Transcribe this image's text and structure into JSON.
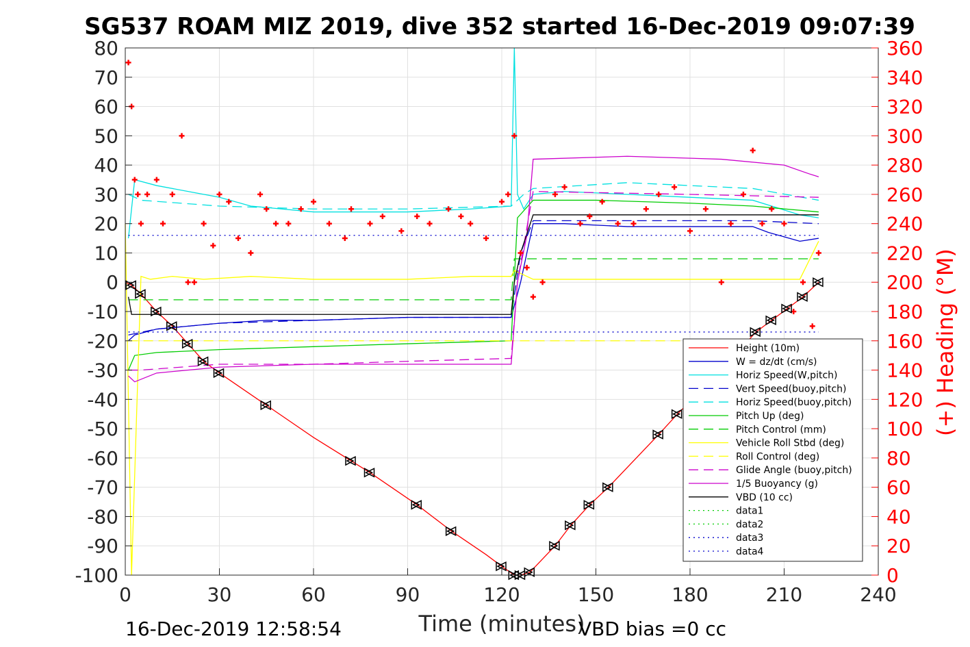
{
  "chart_data": {
    "type": "line",
    "title": "SG537 ROAM MIZ 2019, dive 352 started 16-Dec-2019 09:07:39",
    "xlabel": "Time (minutes)",
    "ylabel": "",
    "y2label": "(+) Heading (°M)",
    "xlim": [
      0,
      240
    ],
    "ylim": [
      -100,
      80
    ],
    "y2lim": [
      0,
      360
    ],
    "x_ticks": [
      "0",
      "30",
      "60",
      "90",
      "120",
      "150",
      "180",
      "210",
      "240"
    ],
    "y_ticks": [
      "80",
      "70",
      "60",
      "50",
      "40",
      "30",
      "20",
      "10",
      "0",
      "-10",
      "-20",
      "-30",
      "-40",
      "-50",
      "-60",
      "-70",
      "-80",
      "-90",
      "-100"
    ],
    "y2_ticks": [
      "360",
      "340",
      "320",
      "300",
      "280",
      "260",
      "240",
      "220",
      "200",
      "180",
      "160",
      "140",
      "120",
      "100",
      "80",
      "60",
      "40",
      "20",
      "0"
    ],
    "grid": true,
    "legend_position": "bottom-right",
    "series": [
      {
        "name": "Height (10m)",
        "color": "#ff0000",
        "style": "solid",
        "x": [
          0,
          2,
          5,
          10,
          15,
          20,
          25,
          30,
          45,
          60,
          72,
          78,
          93,
          104,
          115,
          120,
          124,
          126,
          129,
          137,
          142,
          148,
          154,
          170,
          176,
          190,
          201,
          206,
          211,
          216,
          221
        ],
        "y": [
          0,
          -1,
          -4,
          -10,
          -15,
          -21,
          -27,
          -31,
          -42,
          -53,
          -61,
          -65,
          -76,
          -85,
          -93,
          -97,
          -100,
          -100,
          -99,
          -90,
          -83,
          -76,
          -70,
          -52,
          -45,
          -30,
          -17,
          -13,
          -9,
          -5,
          0
        ]
      },
      {
        "name": "W = dz/dt (cm/s)",
        "color": "#0000cc",
        "style": "solid",
        "x": [
          1,
          3,
          10,
          20,
          30,
          45,
          60,
          90,
          110,
          123,
          126,
          130,
          140,
          160,
          180,
          200,
          205,
          215,
          221
        ],
        "y": [
          -20,
          -18,
          -16,
          -15,
          -14,
          -13,
          -13,
          -12,
          -12,
          -12,
          0,
          20,
          20,
          19,
          19,
          19,
          17,
          14,
          15
        ]
      },
      {
        "name": "Horiz Speed(W,pitch)",
        "color": "#00e0e0",
        "style": "solid",
        "x": [
          1,
          3,
          10,
          20,
          30,
          40,
          60,
          90,
          110,
          123,
          124,
          125,
          127,
          130,
          140,
          160,
          180,
          200,
          215,
          221
        ],
        "y": [
          15,
          35,
          33,
          31,
          29,
          26,
          24,
          24,
          25,
          26,
          80,
          30,
          25,
          30,
          31,
          30,
          29,
          28,
          23,
          22
        ]
      },
      {
        "name": "Vert Speed(buoy,pitch)",
        "color": "#0000cc",
        "style": "dash",
        "x": [
          1,
          10,
          30,
          60,
          90,
          123,
          126,
          130,
          160,
          200,
          221
        ],
        "y": [
          -18,
          -16,
          -14,
          -13,
          -12,
          -12,
          10,
          21,
          21,
          21,
          20
        ]
      },
      {
        "name": "Horiz Speed(buoy,pitch)",
        "color": "#00e0e0",
        "style": "dash",
        "x": [
          1,
          5,
          30,
          60,
          90,
          123,
          127,
          130,
          160,
          200,
          221
        ],
        "y": [
          30,
          28,
          26,
          25,
          25,
          26,
          30,
          32,
          34,
          32,
          28
        ]
      },
      {
        "name": "Pitch Up (deg)",
        "color": "#00cc00",
        "style": "solid",
        "x": [
          1,
          3,
          10,
          30,
          60,
          90,
          123,
          125,
          130,
          150,
          180,
          200,
          221
        ],
        "y": [
          -30,
          -25,
          -24,
          -23,
          -22,
          -21,
          -20,
          22,
          28,
          28,
          27,
          26,
          24
        ]
      },
      {
        "name": "Pitch Control (mm)",
        "color": "#00cc00",
        "style": "dash",
        "x": [
          1,
          123,
          124,
          221
        ],
        "y": [
          -6,
          -6,
          8,
          8
        ]
      },
      {
        "name": "Vehicle Roll Stbd (deg)",
        "color": "#ffff00",
        "style": "solid",
        "x": [
          0,
          2,
          5,
          8,
          15,
          25,
          40,
          60,
          90,
          110,
          123,
          124,
          130,
          160,
          190,
          215,
          221
        ],
        "y": [
          20,
          -100,
          2,
          1,
          2,
          1,
          2,
          1,
          1,
          2,
          2,
          4,
          1,
          1,
          1,
          1,
          14
        ]
      },
      {
        "name": "Roll Control (deg)",
        "color": "#ffff00",
        "style": "dash",
        "x": [
          1,
          123,
          124,
          221
        ],
        "y": [
          -20,
          -20,
          -20,
          -20
        ]
      },
      {
        "name": "Glide Angle (buoy,pitch)",
        "color": "#cc00cc",
        "style": "dash",
        "x": [
          1,
          5,
          30,
          60,
          90,
          123,
          125,
          130,
          180,
          221
        ],
        "y": [
          -30,
          -30,
          -28,
          -28,
          -27,
          -26,
          0,
          31,
          30,
          29
        ]
      },
      {
        "name": "1/5 Buoyancy (g)",
        "color": "#cc00cc",
        "style": "solid",
        "x": [
          1,
          3,
          10,
          30,
          60,
          90,
          123,
          125,
          128,
          130,
          160,
          190,
          210,
          218,
          221
        ],
        "y": [
          -32,
          -34,
          -31,
          -29,
          -28,
          -28,
          -28,
          0,
          16,
          42,
          43,
          42,
          40,
          37,
          36
        ]
      },
      {
        "name": "VBD (10 cc)",
        "color": "#000000",
        "style": "solid",
        "x": [
          1,
          2,
          123,
          124,
          126,
          130,
          221
        ],
        "y": [
          -5,
          -11,
          -11,
          0,
          10,
          23,
          23
        ]
      },
      {
        "name": "data1",
        "color": "#00cc00",
        "style": "dot",
        "x": [],
        "y": []
      },
      {
        "name": "data2",
        "color": "#00cc00",
        "style": "dot",
        "x": [],
        "y": []
      },
      {
        "name": "data3",
        "color": "#0000cc",
        "style": "dot",
        "x": [
          1,
          221
        ],
        "y": [
          -17,
          -17
        ]
      },
      {
        "name": "data4",
        "color": "#0000cc",
        "style": "dot",
        "x": [
          1,
          221
        ],
        "y": [
          16,
          16
        ]
      }
    ],
    "heading_series": {
      "axis": "right",
      "color": "#ff0000",
      "marker": "+",
      "x": [
        1,
        2,
        3,
        4,
        5,
        7,
        10,
        12,
        15,
        18,
        20,
        22,
        25,
        28,
        30,
        33,
        36,
        40,
        43,
        45,
        48,
        52,
        56,
        60,
        65,
        70,
        72,
        78,
        82,
        88,
        93,
        97,
        103,
        107,
        110,
        115,
        120,
        122,
        124,
        126,
        128,
        130,
        133,
        137,
        140,
        145,
        148,
        152,
        157,
        162,
        166,
        170,
        175,
        180,
        185,
        190,
        193,
        197,
        200,
        203,
        206,
        210,
        213,
        216,
        219,
        221
      ],
      "y": [
        350,
        320,
        270,
        260,
        240,
        260,
        270,
        240,
        260,
        300,
        200,
        200,
        240,
        225,
        260,
        255,
        230,
        220,
        260,
        250,
        240,
        240,
        250,
        255,
        240,
        230,
        250,
        240,
        245,
        235,
        245,
        240,
        250,
        245,
        240,
        230,
        255,
        260,
        300,
        220,
        210,
        190,
        200,
        260,
        265,
        240,
        245,
        255,
        240,
        240,
        250,
        260,
        265,
        235,
        250,
        200,
        240,
        260,
        290,
        240,
        250,
        240,
        180,
        200,
        170,
        220
      ]
    },
    "marker_series": {
      "marker": "triangle",
      "color": "#000000",
      "x": [
        2,
        5,
        10,
        15,
        20,
        25,
        30,
        45,
        72,
        78,
        93,
        104,
        120,
        124,
        126,
        129,
        137,
        142,
        148,
        154,
        170,
        176,
        201,
        206,
        211,
        216,
        221
      ],
      "y": [
        -1,
        -4,
        -10,
        -15,
        -21,
        -27,
        -31,
        -42,
        -61,
        -65,
        -76,
        -85,
        -97,
        -100,
        -100,
        -99,
        -90,
        -83,
        -76,
        -70,
        -52,
        -45,
        -17,
        -13,
        -9,
        -5,
        0
      ]
    },
    "footer_left": "16-Dec-2019 12:58:54",
    "footer_right": "VBD bias =0 cc"
  }
}
